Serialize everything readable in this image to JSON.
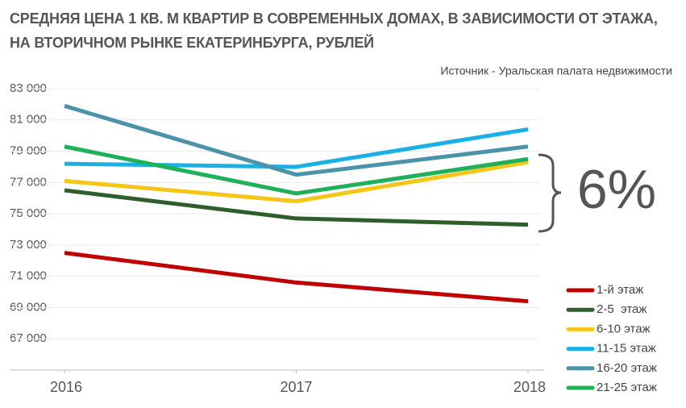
{
  "chart_data": {
    "type": "line",
    "title": "СРЕДНЯЯ ЦЕНА 1 КВ. М КВАРТИР В СОВРЕМЕННЫХ ДОМАХ, В ЗАВИСИМОСТИ ОТ ЭТАЖА, НА ВТОРИЧНОМ РЫНКЕ ЕКАТЕРИНБУРГА, РУБЛЕЙ",
    "subtitle": "Источник - Уральская палата недвижимости",
    "annotation": "6%",
    "x": [
      2016,
      2017,
      2018
    ],
    "xlim": [
      2016,
      2018
    ],
    "xticks": [
      2016,
      2017,
      2018
    ],
    "ylim": [
      65000,
      83000
    ],
    "yticks": [
      {
        "value": 67000,
        "label": "67 000"
      },
      {
        "value": 69000,
        "label": "69 000"
      },
      {
        "value": 71000,
        "label": "71 000"
      },
      {
        "value": 73000,
        "label": "73 000"
      },
      {
        "value": 75000,
        "label": "75 000"
      },
      {
        "value": 77000,
        "label": "77 000"
      },
      {
        "value": 79000,
        "label": "79 000"
      },
      {
        "value": 81000,
        "label": "81 000"
      },
      {
        "value": 83000,
        "label": "83 000"
      }
    ],
    "grid": true,
    "legend": "bottom-right",
    "series": [
      {
        "name": "1-й этаж",
        "color": "#c00000",
        "values": [
          72500,
          70600,
          69400
        ]
      },
      {
        "name": "2-5  этаж",
        "color": "#2e5e2a",
        "values": [
          76500,
          74700,
          74300
        ]
      },
      {
        "name": "6-10 этаж",
        "color": "#f5c518",
        "values": [
          77100,
          75800,
          78300
        ]
      },
      {
        "name": "11-15 этаж",
        "color": "#19b0e6",
        "values": [
          78200,
          78000,
          80400
        ]
      },
      {
        "name": "16-20 этаж",
        "color": "#4a93a8",
        "values": [
          81900,
          77500,
          79300
        ]
      },
      {
        "name": "21-25 этаж",
        "color": "#1fb05a",
        "values": [
          79300,
          76300,
          78500
        ]
      }
    ]
  }
}
